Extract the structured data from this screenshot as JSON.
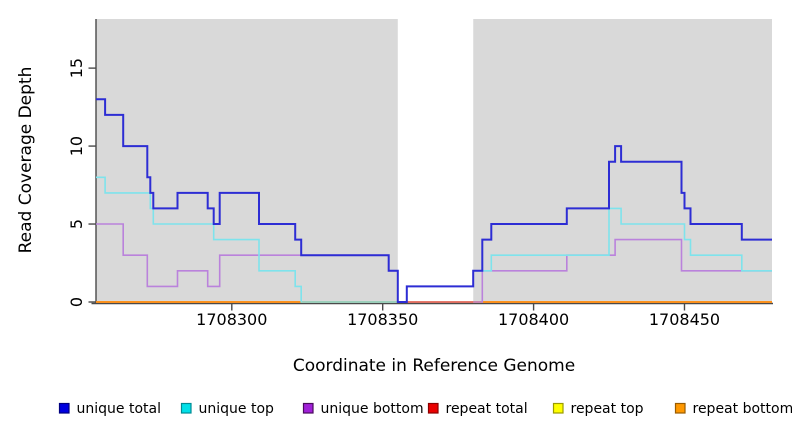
{
  "chart_data": {
    "type": "line",
    "style": "step",
    "title": "",
    "xlabel": "Coordinate in Reference Genome",
    "ylabel": "Read Coverage Depth",
    "xlim": [
      1708255,
      1708479
    ],
    "ylim": [
      0,
      18.15
    ],
    "x_ticks": [
      1708300,
      1708350,
      1708400,
      1708450
    ],
    "y_ticks": [
      0,
      5,
      10,
      15
    ],
    "grid": false,
    "legend_position": "bottom",
    "panel_bg": "#d9d9d9",
    "axis_color": "#4a4a4a",
    "masked_region": {
      "from": 1708355,
      "to": 1708380,
      "fill": "#ffffff"
    },
    "draw_order": [
      "repeat top",
      "repeat total",
      "repeat bottom",
      "unique bottom",
      "unique top",
      "unique total"
    ],
    "series": [
      {
        "name": "unique total",
        "line_color": "#2d2dd4",
        "line_width": 2,
        "legend_fill": "#0000e0",
        "legend_border": "#000080",
        "segments": [
          [
            [
              1708255,
              13
            ],
            [
              1708258,
              12
            ],
            [
              1708264,
              10
            ],
            [
              1708272,
              8
            ],
            [
              1708273,
              7
            ],
            [
              1708274,
              6
            ],
            [
              1708282,
              7
            ],
            [
              1708292,
              6
            ],
            [
              1708294,
              5
            ],
            [
              1708296,
              7
            ],
            [
              1708309,
              5
            ],
            [
              1708321,
              4
            ],
            [
              1708323,
              3
            ],
            [
              1708352,
              2
            ],
            [
              1708355,
              0
            ],
            [
              1708358,
              1
            ],
            [
              1708380,
              2
            ],
            [
              1708383,
              4
            ],
            [
              1708386,
              5
            ],
            [
              1708411,
              6
            ],
            [
              1708425,
              9
            ],
            [
              1708427,
              10
            ],
            [
              1708429,
              9
            ],
            [
              1708449,
              7
            ],
            [
              1708450,
              6
            ],
            [
              1708452,
              5
            ],
            [
              1708469,
              4
            ],
            [
              1708479,
              4
            ]
          ]
        ]
      },
      {
        "name": "unique top",
        "line_color": "#7ee3ec",
        "line_width": 1.6,
        "legend_fill": "#00e0e8",
        "legend_border": "#008b94",
        "segments": [
          [
            [
              1708255,
              8
            ],
            [
              1708258,
              7
            ],
            [
              1708273,
              6
            ],
            [
              1708274,
              5
            ],
            [
              1708294,
              4
            ],
            [
              1708309,
              2
            ],
            [
              1708321,
              1
            ],
            [
              1708323,
              0
            ],
            [
              1708355,
              0
            ]
          ],
          [
            [
              1708380,
              2
            ],
            [
              1708386,
              3
            ],
            [
              1708425,
              6
            ],
            [
              1708429,
              5
            ],
            [
              1708450,
              4
            ],
            [
              1708452,
              3
            ],
            [
              1708469,
              2
            ],
            [
              1708479,
              2
            ]
          ]
        ]
      },
      {
        "name": "unique bottom",
        "line_color": "#ba82dc",
        "line_width": 1.6,
        "legend_fill": "#a020d8",
        "legend_border": "#4a0a5e",
        "segments": [
          [
            [
              1708255,
              5
            ],
            [
              1708264,
              3
            ],
            [
              1708272,
              1
            ],
            [
              1708282,
              2
            ],
            [
              1708292,
              1
            ],
            [
              1708296,
              3
            ],
            [
              1708352,
              2
            ],
            [
              1708355,
              2
            ]
          ],
          [
            [
              1708380,
              0
            ],
            [
              1708383,
              2
            ],
            [
              1708411,
              3
            ],
            [
              1708427,
              4
            ],
            [
              1708449,
              2
            ],
            [
              1708479,
              2
            ]
          ]
        ]
      },
      {
        "name": "repeat total",
        "line_color": "#e04f66",
        "line_width": 1.6,
        "legend_fill": "#ea0000",
        "legend_border": "#8b0000",
        "segments": [
          [
            [
              1708255,
              0
            ],
            [
              1708479,
              0
            ]
          ]
        ]
      },
      {
        "name": "repeat top",
        "line_color": "#f5f500",
        "line_width": 1.6,
        "legend_fill": "#ffff00",
        "legend_border": "#9b9b00",
        "segments": [
          [
            [
              1708255,
              0
            ],
            [
              1708479,
              0
            ]
          ]
        ]
      },
      {
        "name": "repeat bottom",
        "line_color": "#ff9114",
        "line_width": 1.8,
        "legend_fill": "#ff9800",
        "legend_border": "#995c00",
        "segments": [
          [
            [
              1708255,
              0
            ],
            [
              1708355,
              0
            ]
          ],
          [
            [
              1708380,
              0
            ],
            [
              1708479,
              0
            ]
          ]
        ]
      }
    ]
  }
}
